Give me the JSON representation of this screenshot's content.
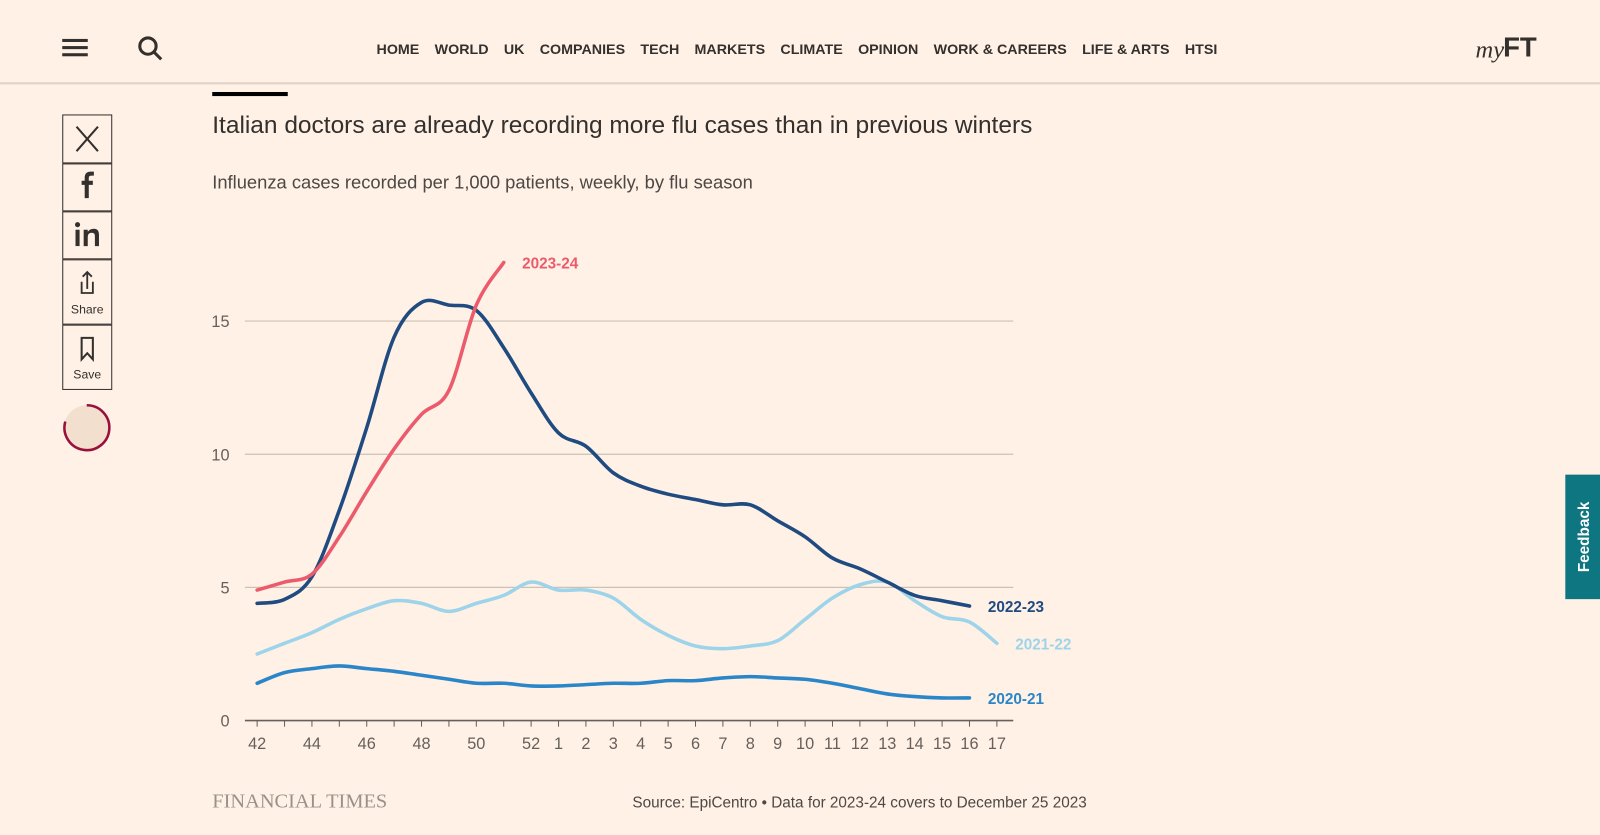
{
  "nav": {
    "items": [
      "HOME",
      "WORLD",
      "UK",
      "COMPANIES",
      "TECH",
      "MARKETS",
      "CLIMATE",
      "OPINION",
      "WORK & CAREERS",
      "LIFE & ARTS",
      "HTSI"
    ],
    "logo_prefix": "my",
    "logo": "FT"
  },
  "share": {
    "share_label": "Share",
    "save_label": "Save"
  },
  "feedback": "Feedback",
  "chart_data": {
    "type": "line",
    "title": "Italian doctors are already recording more flu cases than in previous winters",
    "subtitle": "Influenza cases recorded per 1,000 patients, weekly, by flu season",
    "categories": [
      "42",
      null,
      "44",
      null,
      "46",
      null,
      "48",
      null,
      "50",
      null,
      "52",
      "1",
      "2",
      "3",
      "4",
      "5",
      "6",
      "7",
      "8",
      "9",
      "10",
      "11",
      "12",
      "13",
      "14",
      "15",
      "16",
      "17"
    ],
    "ylim": [
      0,
      18
    ],
    "yticks": [
      0,
      5,
      10,
      15
    ],
    "grid": true,
    "series": [
      {
        "name": "2020-21",
        "color": "#2a86c8",
        "values": [
          1.4,
          1.8,
          1.95,
          2.05,
          1.95,
          1.85,
          1.7,
          1.55,
          1.4,
          1.4,
          1.3,
          1.3,
          1.35,
          1.4,
          1.4,
          1.5,
          1.5,
          1.6,
          1.65,
          1.6,
          1.55,
          1.4,
          1.2,
          1.0,
          0.9,
          0.85,
          0.85,
          null
        ]
      },
      {
        "name": "2021-22",
        "color": "#9dd4ea",
        "values": [
          2.5,
          2.9,
          3.3,
          3.8,
          4.2,
          4.5,
          4.4,
          4.1,
          4.4,
          4.7,
          5.2,
          4.9,
          4.9,
          4.6,
          3.8,
          3.2,
          2.8,
          2.7,
          2.8,
          3.0,
          3.8,
          4.6,
          5.1,
          5.2,
          4.5,
          3.9,
          3.7,
          2.9
        ]
      },
      {
        "name": "2022-23",
        "color": "#1f4b80",
        "values": [
          4.4,
          4.55,
          5.4,
          7.9,
          11.0,
          14.4,
          15.7,
          15.6,
          15.4,
          14.0,
          12.3,
          10.8,
          10.3,
          9.3,
          8.8,
          8.5,
          8.3,
          8.1,
          8.1,
          7.5,
          6.9,
          6.1,
          5.7,
          5.2,
          4.7,
          4.5,
          4.3,
          null
        ]
      },
      {
        "name": "2023-24",
        "color": "#eb5b6c",
        "values": [
          4.9,
          5.2,
          5.5,
          6.9,
          8.6,
          10.2,
          11.5,
          12.4,
          15.6,
          17.2,
          null,
          null,
          null,
          null,
          null,
          null,
          null,
          null,
          null,
          null,
          null,
          null,
          null,
          null,
          null,
          null,
          null,
          null
        ]
      }
    ],
    "brand": "FINANCIAL TIMES",
    "source": "Source: EpiCentro • Data for 2023-24 covers to December 25 2023"
  }
}
